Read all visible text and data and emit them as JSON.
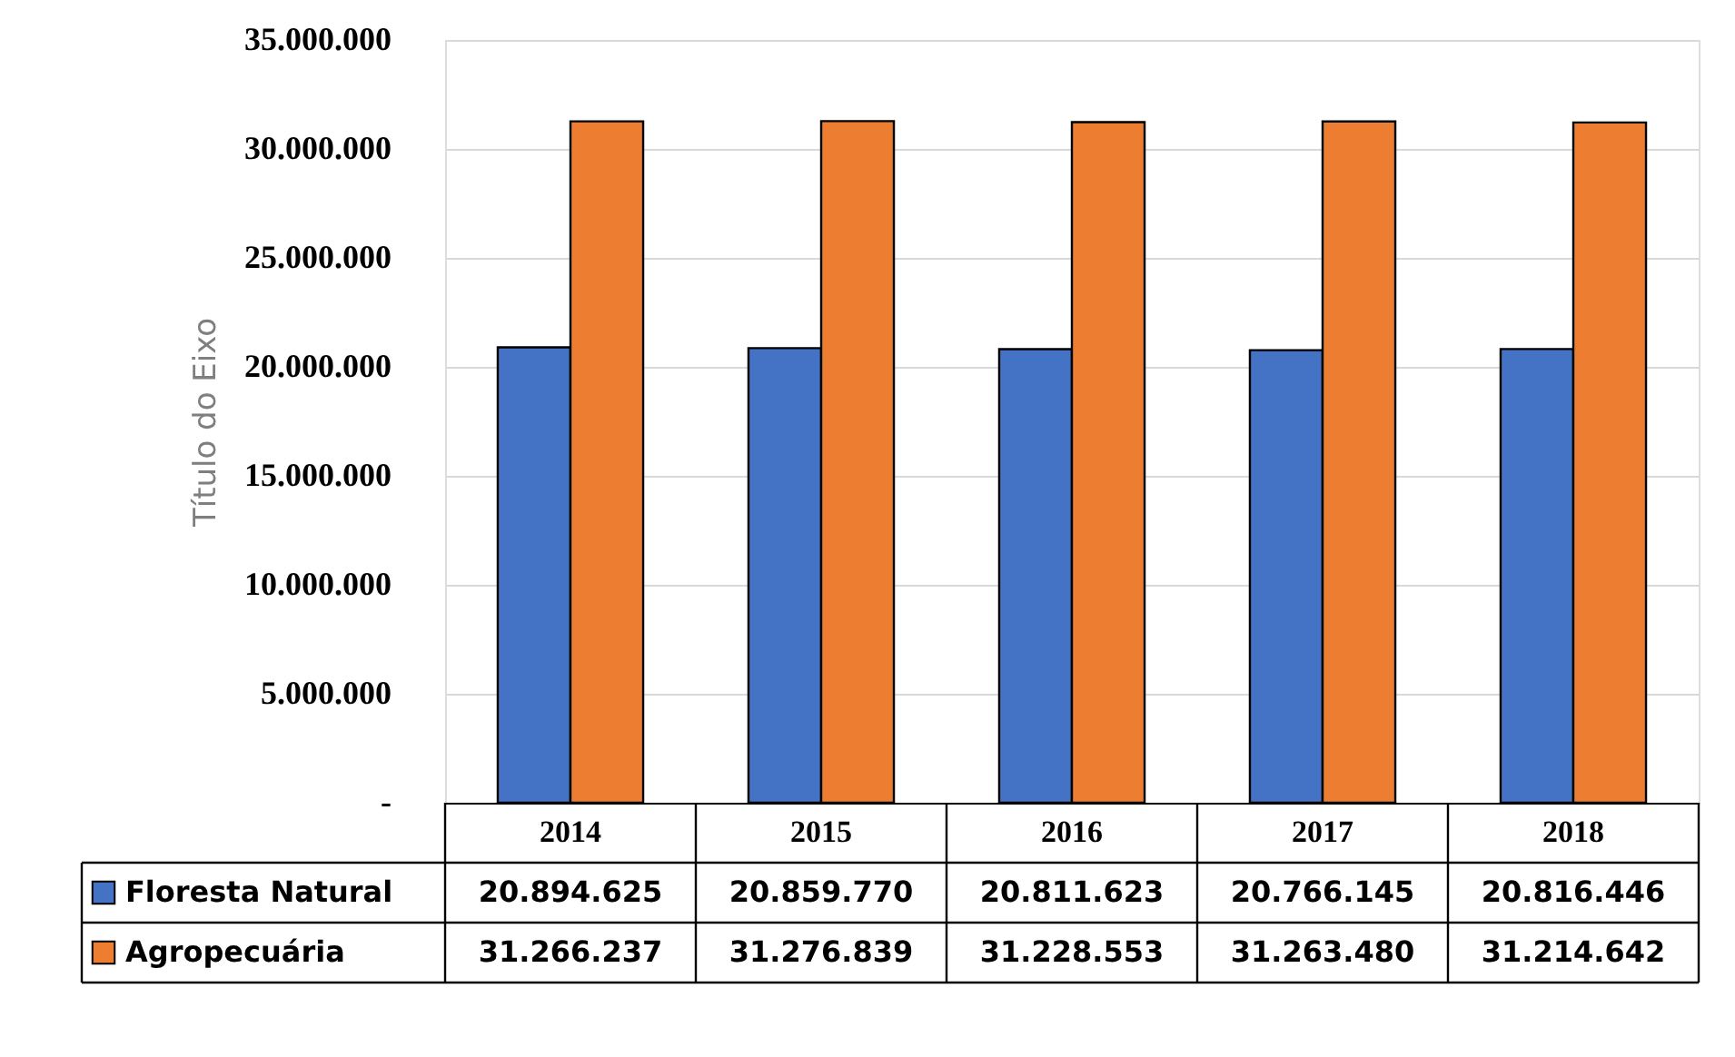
{
  "chart_data": {
    "type": "bar",
    "ylabel": "Título do Eixo",
    "categories": [
      "2014",
      "2015",
      "2016",
      "2017",
      "2018"
    ],
    "series": [
      {
        "name": "Floresta Natural",
        "color": "#4472c4",
        "values": [
          20894625,
          20859770,
          20811623,
          20766145,
          20816446
        ],
        "value_labels": [
          "20.894.625",
          "20.859.770",
          "20.811.623",
          "20.766.145",
          "20.816.446"
        ]
      },
      {
        "name": "Agropecuária",
        "color": "#ed7d31",
        "values": [
          31266237,
          31276839,
          31228553,
          31263480,
          31214642
        ],
        "value_labels": [
          "31.266.237",
          "31.276.839",
          "31.228.553",
          "31.263.480",
          "31.214.642"
        ]
      }
    ],
    "ylim": [
      0,
      35000000
    ],
    "yticks": [
      {
        "value": 0,
        "label": "-"
      },
      {
        "value": 5000000,
        "label": "5.000.000"
      },
      {
        "value": 10000000,
        "label": "10.000.000"
      },
      {
        "value": 15000000,
        "label": "15.000.000"
      },
      {
        "value": 20000000,
        "label": "20.000.000"
      },
      {
        "value": 25000000,
        "label": "25.000.000"
      },
      {
        "value": 30000000,
        "label": "30.000.000"
      },
      {
        "value": 35000000,
        "label": "35.000.000"
      }
    ],
    "grid": "y",
    "legend": "bottom"
  }
}
